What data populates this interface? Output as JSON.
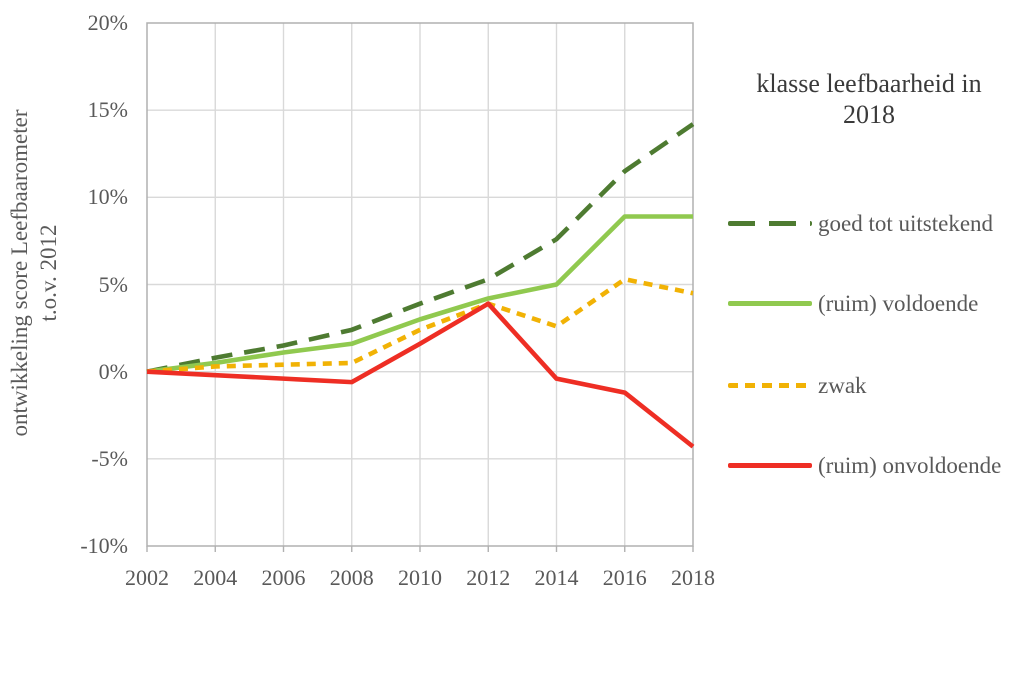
{
  "chart_data": {
    "type": "line",
    "title": "",
    "legend_title": "klasse leefbaarheid in 2018",
    "legend_position": "right",
    "xlabel": "",
    "ylabel": "ontwikkeling score Leefbaarometer t.o.v. 2012",
    "ylabel_line1": "ontwikkeling score Leefbaarometer",
    "ylabel_line2": "t.o.v. 2012",
    "grid": true,
    "unit": "%",
    "x": [
      2002,
      2004,
      2006,
      2008,
      2010,
      2012,
      2014,
      2016,
      2018
    ],
    "x_tick_labels": [
      "2002",
      "2004",
      "2006",
      "2008",
      "2010",
      "2012",
      "2014",
      "2016",
      "2018"
    ],
    "y_tick_labels": [
      "20%",
      "15%",
      "10%",
      "5%",
      "0%",
      "-5%",
      "-10%"
    ],
    "y_tick_values": [
      20,
      15,
      10,
      5,
      0,
      -5,
      -10
    ],
    "ylim": [
      -10,
      20
    ],
    "xlim": [
      2002,
      2018
    ],
    "series": [
      {
        "name": "goed tot uitstekend",
        "color": "#4e7b31",
        "line_style": "long-dash",
        "values": [
          0,
          0.8,
          1.5,
          2.4,
          3.9,
          5.3,
          7.6,
          11.5,
          14.2
        ]
      },
      {
        "name": "(ruim) voldoende",
        "color": "#90c94f",
        "line_style": "solid",
        "values": [
          0,
          0.5,
          1.1,
          1.6,
          3.0,
          4.2,
          5.0,
          8.9,
          8.9
        ]
      },
      {
        "name": "zwak",
        "color": "#f1b205",
        "line_style": "short-dash",
        "values": [
          0,
          0.3,
          0.4,
          0.5,
          2.4,
          3.9,
          2.6,
          5.3,
          4.5
        ]
      },
      {
        "name": "(ruim) onvoldoende",
        "color": "#ee2e24",
        "line_style": "solid",
        "values": [
          0,
          -0.2,
          -0.4,
          -0.6,
          1.6,
          3.9,
          -0.4,
          -1.2,
          -4.3
        ]
      }
    ],
    "colors": {
      "gridline": "#d9d9d9",
      "plot_border": "#b0b0b0",
      "axis_text": "#595959",
      "legend_title_text": "#3a3a3a"
    }
  }
}
